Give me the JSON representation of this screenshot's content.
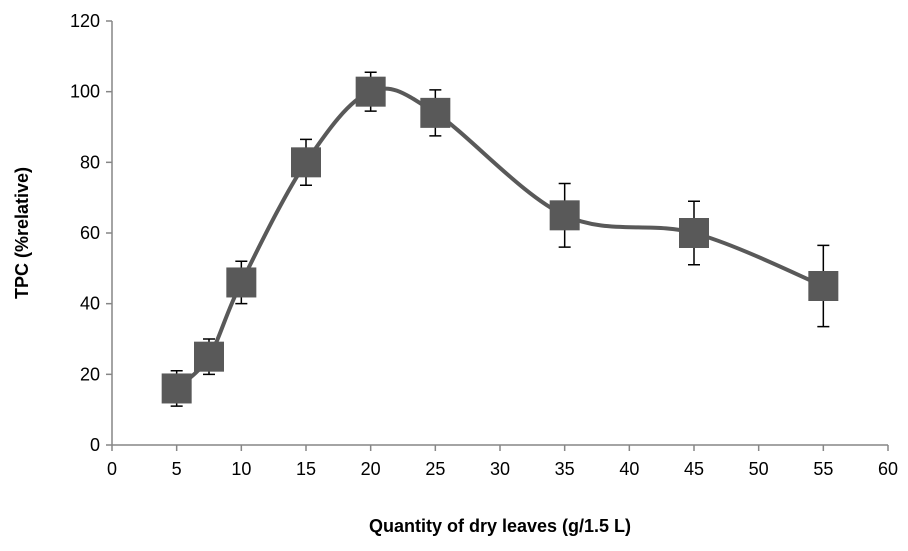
{
  "chart_data": {
    "type": "line",
    "xlabel": "Quantity of dry leaves (g/1.5 L)",
    "ylabel": "TPC (%relative)",
    "x": [
      5,
      7.5,
      10,
      15,
      20,
      25,
      35,
      45,
      55
    ],
    "values": [
      16,
      25,
      46,
      80,
      100,
      94,
      65,
      60,
      45
    ],
    "errors": [
      5,
      5,
      6,
      6.5,
      5.5,
      6.5,
      9,
      9,
      11.5
    ],
    "color": "#595959",
    "xlim": [
      0,
      60
    ],
    "xticks": [
      0,
      5,
      10,
      15,
      20,
      25,
      30,
      35,
      40,
      45,
      50,
      55,
      60
    ],
    "ylim": [
      0,
      120
    ],
    "yticks": [
      0,
      20,
      40,
      60,
      80,
      100,
      120
    ],
    "grid": false,
    "smooth": true
  }
}
